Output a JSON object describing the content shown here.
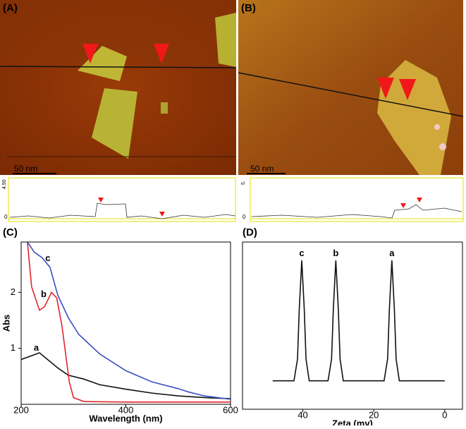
{
  "panels": {
    "A": {
      "label": "(A)",
      "scale": "50 nm",
      "profile_ticks": [
        "4.50",
        "0"
      ]
    },
    "B": {
      "label": "(B)",
      "scale": "50 nm",
      "profile_ticks": [
        "5.",
        "0"
      ]
    }
  },
  "chart_data": [
    {
      "type": "line",
      "label": "(C)",
      "xlabel": "Wavelength (nm)",
      "ylabel": "Abs",
      "xlim": [
        200,
        600
      ],
      "ylim": [
        0,
        2.9
      ],
      "xticks": [
        200,
        400,
        600
      ],
      "yticks": [
        1,
        2
      ],
      "series": [
        {
          "name": "a",
          "color": "#111111",
          "x": [
            200,
            235,
            270,
            290,
            320,
            350,
            400,
            450,
            500,
            550,
            600
          ],
          "values": [
            0.8,
            0.92,
            0.65,
            0.52,
            0.45,
            0.35,
            0.27,
            0.2,
            0.15,
            0.12,
            0.1
          ]
        },
        {
          "name": "b",
          "color": "#e0252b",
          "x": [
            212,
            220,
            235,
            245,
            258,
            268,
            278,
            285,
            292,
            300,
            320,
            400,
            600
          ],
          "values": [
            2.9,
            2.1,
            1.68,
            1.75,
            2.0,
            1.9,
            1.4,
            0.9,
            0.4,
            0.12,
            0.05,
            0.04,
            0.04
          ]
        },
        {
          "name": "c",
          "color": "#3a4fc4",
          "x": [
            212,
            225,
            240,
            255,
            270,
            290,
            310,
            350,
            400,
            450,
            500,
            520,
            550,
            600
          ],
          "values": [
            2.9,
            2.72,
            2.62,
            2.45,
            1.95,
            1.55,
            1.25,
            0.9,
            0.6,
            0.4,
            0.28,
            0.22,
            0.15,
            0.09
          ]
        }
      ],
      "annotations": [
        {
          "text": "a",
          "x": 229,
          "y": 1.0
        },
        {
          "text": "b",
          "x": 243,
          "y": 1.96
        },
        {
          "text": "c",
          "x": 251,
          "y": 2.6
        }
      ]
    },
    {
      "type": "line",
      "label": "(D)",
      "xlabel": "Zeta (mv)",
      "xlim": [
        57,
        -5
      ],
      "ylim": [
        0,
        1
      ],
      "xticks": [
        40,
        20,
        0
      ],
      "series": [
        {
          "name": "zeta",
          "color": "#111111",
          "x": [
            48.5,
            42.5,
            41.5,
            41,
            40.3,
            39.6,
            39.1,
            38.2,
            32.9,
            31.9,
            31.4,
            30.7,
            30,
            29.5,
            28.6,
            17.1,
            16.1,
            15.6,
            14.9,
            14.2,
            13.7,
            12.8,
            0
          ],
          "values": [
            0.17,
            0.17,
            0.3,
            0.6,
            0.89,
            0.6,
            0.3,
            0.17,
            0.17,
            0.3,
            0.6,
            0.89,
            0.6,
            0.3,
            0.17,
            0.17,
            0.3,
            0.6,
            0.89,
            0.6,
            0.3,
            0.17,
            0.17
          ]
        }
      ],
      "annotations": [
        {
          "text": "c",
          "x": 40.3,
          "y": 0.93
        },
        {
          "text": "b",
          "x": 30.7,
          "y": 0.93
        },
        {
          "text": "a",
          "x": 14.9,
          "y": 0.93
        }
      ]
    }
  ]
}
